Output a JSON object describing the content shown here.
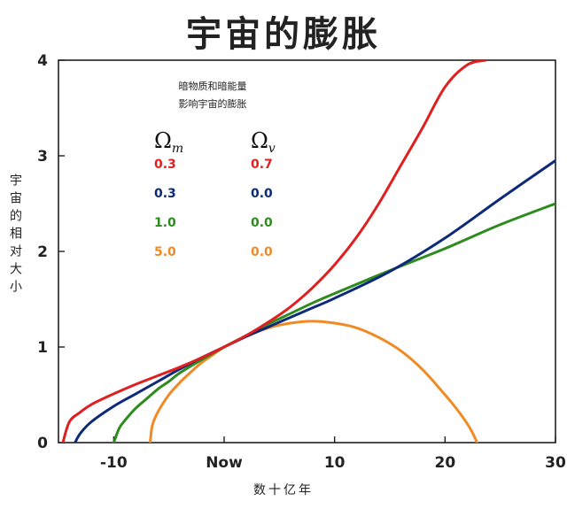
{
  "title": "宇宙的膨胀",
  "chart_data": {
    "type": "line",
    "title": "宇宙的膨胀",
    "xlabel": "数十亿年",
    "ylabel": "宇宙的相对大小",
    "xlim": [
      -15,
      30
    ],
    "ylim": [
      0,
      4
    ],
    "x_ticks": [
      -10,
      0,
      10,
      20,
      30
    ],
    "x_tick_labels": [
      "-10",
      "Now",
      "10",
      "20",
      "30"
    ],
    "y_ticks": [
      0,
      1,
      2,
      3,
      4
    ],
    "y_tick_labels": [
      "0",
      "1",
      "2",
      "3",
      "4"
    ],
    "grid": false,
    "legend": {
      "title_lines": [
        "暗物质和暗能量",
        "影响宇宙的膨胀"
      ],
      "column_headers": [
        {
          "symbol": "Ω",
          "subscript": "m"
        },
        {
          "symbol": "Ω",
          "subscript": "v"
        }
      ],
      "placement": "top-left"
    },
    "series": [
      {
        "omega_m": "0.3",
        "omega_v": "0.7",
        "color": "#e02020",
        "x": [
          -14.6,
          -14,
          -13,
          -12,
          -10,
          -8,
          -6,
          -4,
          -2,
          0,
          2,
          4,
          6,
          8,
          10,
          12,
          14,
          16,
          18,
          20,
          22,
          23.7
        ],
        "y": [
          0,
          0.22,
          0.32,
          0.4,
          0.51,
          0.61,
          0.7,
          0.79,
          0.89,
          1.0,
          1.12,
          1.26,
          1.42,
          1.62,
          1.86,
          2.15,
          2.5,
          2.9,
          3.3,
          3.72,
          3.95,
          4.0
        ]
      },
      {
        "omega_m": "0.3",
        "omega_v": "0.0",
        "color": "#0d2a7a",
        "x": [
          -13.5,
          -13,
          -12,
          -10,
          -8,
          -6,
          -4,
          -2,
          0,
          2,
          4,
          6,
          8,
          10,
          15,
          20,
          25,
          30
        ],
        "y": [
          0,
          0.1,
          0.22,
          0.38,
          0.51,
          0.64,
          0.77,
          0.89,
          1.0,
          1.11,
          1.21,
          1.31,
          1.41,
          1.51,
          1.79,
          2.14,
          2.55,
          2.95
        ]
      },
      {
        "omega_m": "1.0",
        "omega_v": "0.0",
        "color": "#2e8b1e",
        "x": [
          -10,
          -9.5,
          -9,
          -8,
          -7,
          -6,
          -5,
          -4,
          -2,
          0,
          2,
          4,
          6,
          8,
          10,
          15,
          20,
          25,
          30
        ],
        "y": [
          0,
          0.15,
          0.23,
          0.36,
          0.46,
          0.56,
          0.64,
          0.73,
          0.87,
          1.0,
          1.12,
          1.24,
          1.35,
          1.46,
          1.56,
          1.8,
          2.03,
          2.28,
          2.5
        ]
      },
      {
        "omega_m": "5.0",
        "omega_v": "0.0",
        "color": "#f08a24",
        "x": [
          -6.7,
          -6.5,
          -6,
          -5,
          -4,
          -3,
          -2,
          -1,
          0,
          2,
          4,
          6,
          8,
          10,
          12,
          14,
          16,
          18,
          20,
          21,
          22,
          22.5,
          22.9
        ],
        "y": [
          0,
          0.18,
          0.32,
          0.5,
          0.63,
          0.74,
          0.84,
          0.92,
          1.0,
          1.11,
          1.2,
          1.25,
          1.27,
          1.25,
          1.2,
          1.1,
          0.96,
          0.76,
          0.5,
          0.36,
          0.2,
          0.1,
          0
        ]
      }
    ]
  }
}
